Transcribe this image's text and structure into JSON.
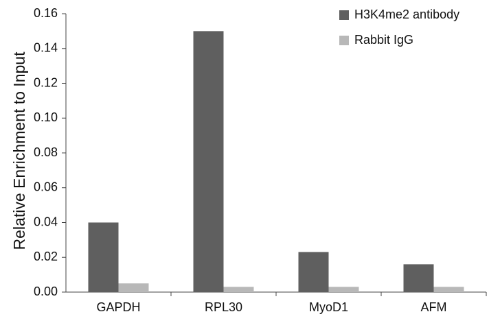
{
  "chart_data": {
    "type": "bar",
    "title": "",
    "xlabel": "",
    "ylabel": "Relative Enrichment to Input",
    "ylim": [
      0,
      0.16
    ],
    "yticks": [
      "0.00",
      "0.02",
      "0.04",
      "0.06",
      "0.08",
      "0.10",
      "0.12",
      "0.14",
      "0.16"
    ],
    "categories": [
      "GAPDH",
      "RPL30",
      "MyoD1",
      "AFM"
    ],
    "series": [
      {
        "name": "H3K4me2 antibody",
        "values": [
          0.04,
          0.15,
          0.023,
          0.016
        ],
        "color": "#5f5f5f"
      },
      {
        "name": "Rabbit IgG",
        "values": [
          0.005,
          0.003,
          0.003,
          0.003
        ],
        "color": "#b8b8b8"
      }
    ],
    "grid": false,
    "legend_position": "top-right"
  }
}
